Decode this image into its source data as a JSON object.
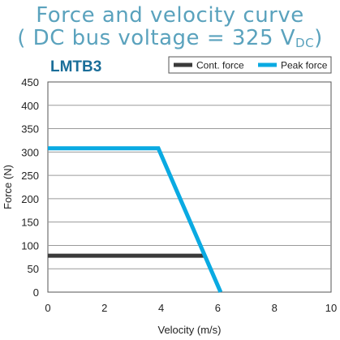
{
  "title_line1": "Force and velocity curve",
  "title_line2_prefix": "( DC bus voltage = 325 V",
  "title_line2_sub": "DC",
  "title_line2_suffix": ")",
  "model_label": "LMTB3",
  "colors": {
    "cont": "#3a3a3a",
    "peak": "#0aaae2",
    "title": "#5aa2bd",
    "model": "#1a6e99",
    "grid": "#9a9a9a"
  },
  "chart_data": {
    "type": "line",
    "xlabel": "Velocity (m/s)",
    "ylabel": "Force (N)",
    "xlim": [
      0,
      10
    ],
    "ylim": [
      0,
      450
    ],
    "xticks": [
      0,
      2,
      4,
      6,
      8,
      10
    ],
    "yticks": [
      0,
      50,
      100,
      150,
      200,
      250,
      300,
      350,
      400,
      450
    ],
    "grid": "horizontal",
    "legend_position": "top-right",
    "series": [
      {
        "name": "Cont. force",
        "color": "#3a3a3a",
        "x": [
          0,
          5.5
        ],
        "y": [
          78,
          78
        ]
      },
      {
        "name": "Peak force",
        "color": "#0aaae2",
        "x": [
          0,
          3.9,
          6.1
        ],
        "y": [
          308,
          308,
          0
        ]
      }
    ]
  }
}
